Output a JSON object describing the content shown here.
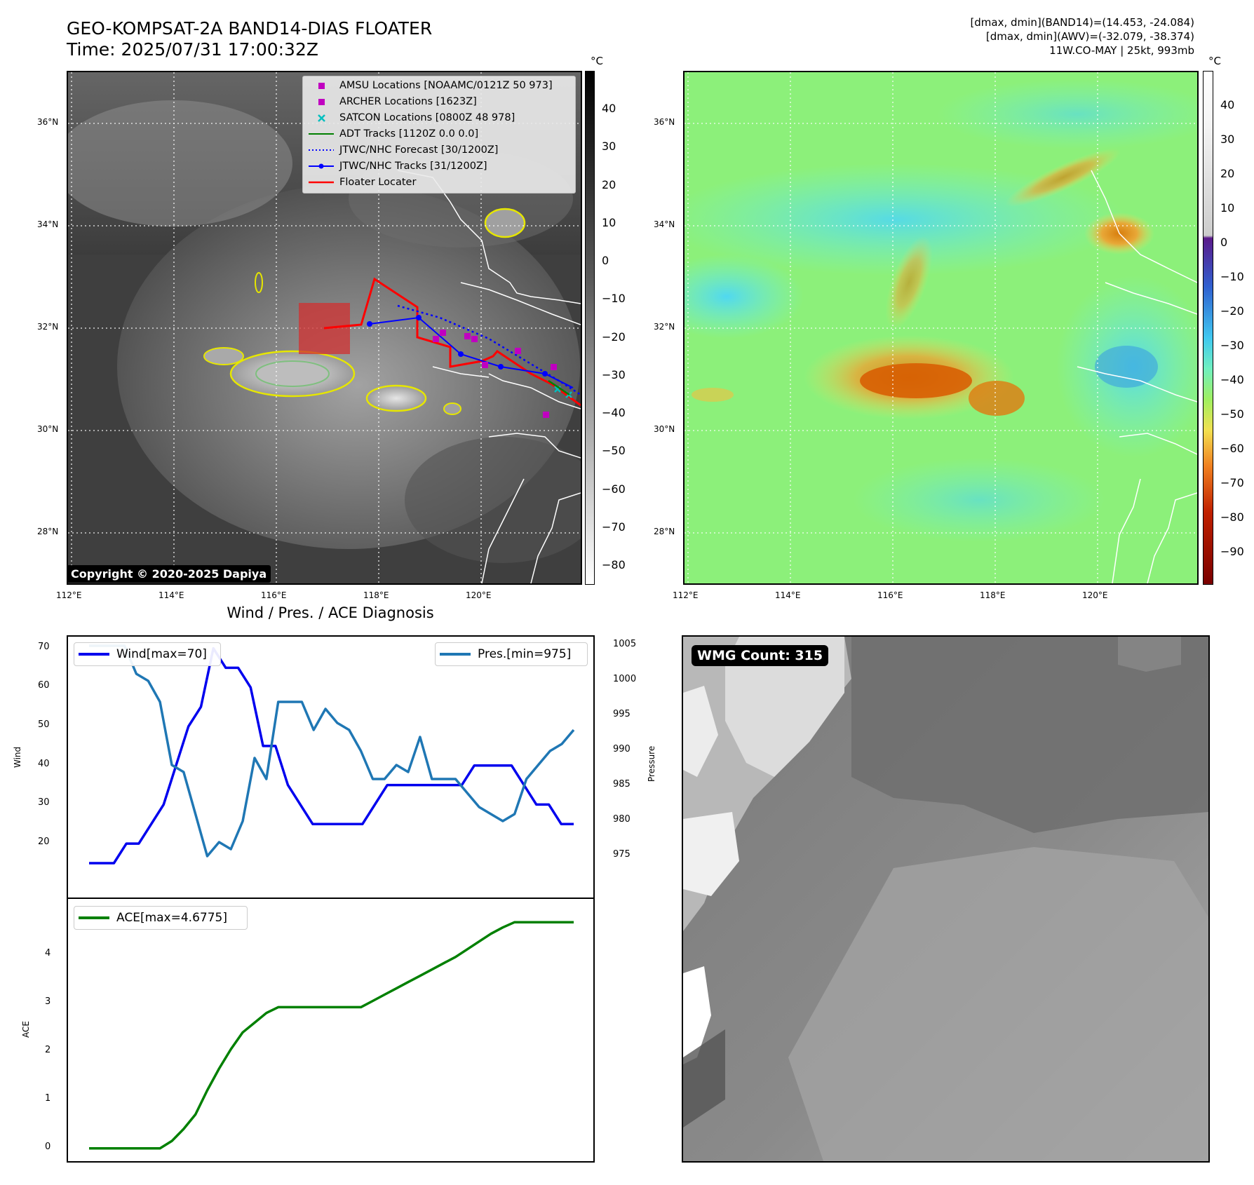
{
  "header": {
    "title_line1": "GEO-KOMPSAT-2A BAND14-DIAS FLOATER",
    "title_line2": "Time: 2025/07/31 17:00:32Z",
    "right_line1": "[dmax, dmin](BAND14)=(14.453, -24.084)",
    "right_line2": "[dmax, dmin](AWV)=(-32.079, -38.374)",
    "right_line3": "11W.CO-MAY | 25kt, 993mb"
  },
  "ir_panel": {
    "copyright": "Copyright © 2020-2025 Dapiya",
    "lat_labels": [
      "36°N",
      "34°N",
      "32°N",
      "30°N",
      "28°N"
    ],
    "lon_labels": [
      "112°E",
      "114°E",
      "116°E",
      "118°E",
      "120°E"
    ],
    "legend": {
      "amsu": "AMSU Locations [NOAAMC/0121Z 50 973]",
      "archer": "ARCHER Locations [1623Z]",
      "satcon": "SATCON Locations [0800Z 48 978]",
      "adt": "ADT Tracks [1120Z 0.0 0.0]",
      "forecast": "JTWC/NHC Forecast [30/1200Z]",
      "tracks": "JTWC/NHC Tracks [31/1200Z]",
      "floater": "Floater Locater"
    },
    "legend_colors": {
      "amsu": "#c000c0",
      "satcon": "#00bfbf",
      "adt": "#008000",
      "forecast": "#0000ff",
      "tracks": "#0000ff",
      "floater": "#ff0000"
    },
    "colorbar_unit": "°C",
    "colorbar_ticks": [
      "40",
      "30",
      "20",
      "10",
      "0",
      "−10",
      "−20",
      "−30",
      "−40",
      "−50",
      "−60",
      "−70",
      "−80"
    ]
  },
  "wv_panel": {
    "lat_labels": [
      "36°N",
      "34°N",
      "32°N",
      "30°N",
      "28°N"
    ],
    "lon_labels": [
      "112°E",
      "114°E",
      "116°E",
      "118°E",
      "120°E"
    ],
    "colorbar_unit": "°C",
    "colorbar_ticks": [
      "40",
      "30",
      "20",
      "10",
      "0",
      "−10",
      "−20",
      "−30",
      "−40",
      "−50",
      "−60",
      "−70",
      "−80",
      "−90"
    ]
  },
  "diagnosis": {
    "title": "Wind / Pres. / ACE Diagnosis",
    "wind_ylabel": "Wind",
    "pres_ylabel": "Pressure",
    "ace_ylabel": "ACE",
    "wind_legend": "Wind[max=70]",
    "pres_legend": "Pres.[min=975]",
    "ace_legend": "ACE[max=4.6775]",
    "wind_ticks": [
      "70",
      "60",
      "50",
      "40",
      "30",
      "20"
    ],
    "pres_ticks": [
      "1005",
      "1000",
      "995",
      "990",
      "985",
      "980",
      "975"
    ],
    "ace_ticks": [
      "4",
      "3",
      "2",
      "1",
      "0"
    ],
    "colors": {
      "wind": "#0000ee",
      "pres": "#1f77b4",
      "ace": "#008000"
    }
  },
  "wmg_panel": {
    "badge": "WMG Count: 315"
  },
  "chart_data": [
    {
      "type": "line",
      "title": "Wind / Pres. / ACE Diagnosis",
      "ylabel": "Wind",
      "ylim": [
        15,
        71
      ],
      "series": [
        {
          "name": "Wind[max=70]",
          "values": [
            15,
            15,
            15,
            20,
            20,
            25,
            30,
            40,
            50,
            55,
            70,
            65,
            65,
            60,
            45,
            45,
            35,
            30,
            25,
            25,
            25,
            25,
            25,
            30,
            35,
            35,
            35,
            35,
            35,
            35,
            35,
            40,
            40,
            40,
            40,
            35,
            30,
            30,
            25,
            25
          ]
        }
      ]
    },
    {
      "type": "line",
      "ylabel": "Pressure",
      "ylim": [
        974,
        1005.5
      ],
      "series": [
        {
          "name": "Pres.[min=975]",
          "values": [
            1005,
            1005,
            1005,
            1005,
            1001,
            1000,
            997,
            988,
            987,
            981,
            975,
            977,
            976,
            980,
            989,
            986,
            997,
            997,
            997,
            993,
            996,
            994,
            993,
            990,
            986,
            986,
            988,
            987,
            992,
            986,
            986,
            986,
            984,
            982,
            981,
            980,
            981,
            986,
            988,
            990,
            991,
            993
          ]
        }
      ]
    },
    {
      "type": "line",
      "ylabel": "ACE",
      "ylim": [
        -0.15,
        4.9
      ],
      "series": [
        {
          "name": "ACE[max=4.6775]",
          "values": [
            0,
            0,
            0,
            0,
            0,
            0,
            0,
            0.15,
            0.4,
            0.7,
            1.2,
            1.65,
            2.05,
            2.4,
            2.6,
            2.8,
            2.92,
            2.92,
            2.92,
            2.92,
            2.92,
            2.92,
            2.92,
            2.92,
            3.05,
            3.18,
            3.31,
            3.44,
            3.57,
            3.7,
            3.83,
            3.96,
            4.12,
            4.28,
            4.44,
            4.57,
            4.68,
            4.68,
            4.68,
            4.68,
            4.68,
            4.68
          ]
        }
      ]
    }
  ]
}
